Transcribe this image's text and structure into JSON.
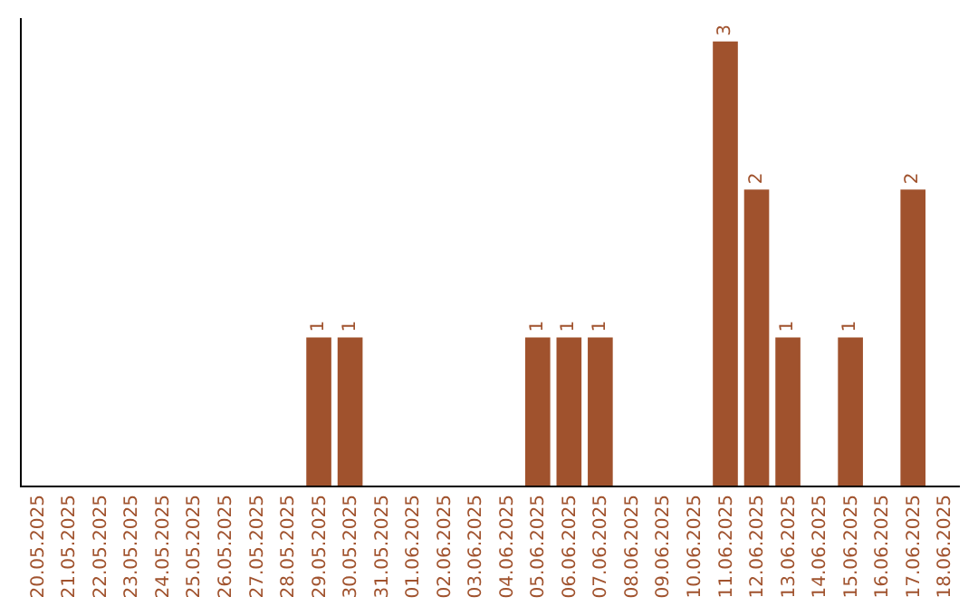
{
  "chart_data": {
    "type": "bar",
    "categories": [
      "20.05.2025",
      "21.05.2025",
      "22.05.2025",
      "23.05.2025",
      "24.05.2025",
      "25.05.2025",
      "26.05.2025",
      "27.05.2025",
      "28.05.2025",
      "29.05.2025",
      "30.05.2025",
      "31.05.2025",
      "01.06.2025",
      "02.06.2025",
      "03.06.2025",
      "04.06.2025",
      "05.06.2025",
      "06.06.2025",
      "07.06.2025",
      "08.06.2025",
      "09.06.2025",
      "10.06.2025",
      "11.06.2025",
      "12.06.2025",
      "13.06.2025",
      "14.06.2025",
      "15.06.2025",
      "16.06.2025",
      "17.06.2025",
      "18.06.2025"
    ],
    "values": [
      0,
      0,
      0,
      0,
      0,
      0,
      0,
      0,
      0,
      1,
      1,
      0,
      0,
      0,
      0,
      0,
      1,
      1,
      1,
      0,
      0,
      0,
      3,
      2,
      1,
      0,
      1,
      0,
      2,
      0
    ],
    "value_labels": [
      null,
      null,
      null,
      null,
      null,
      null,
      null,
      null,
      null,
      "1",
      "1",
      null,
      null,
      null,
      null,
      null,
      "1",
      "1",
      "1",
      null,
      null,
      null,
      "3",
      "2",
      "1",
      null,
      "1",
      null,
      "2",
      null
    ],
    "color": "#a0522d",
    "grid": false,
    "legend": false
  }
}
